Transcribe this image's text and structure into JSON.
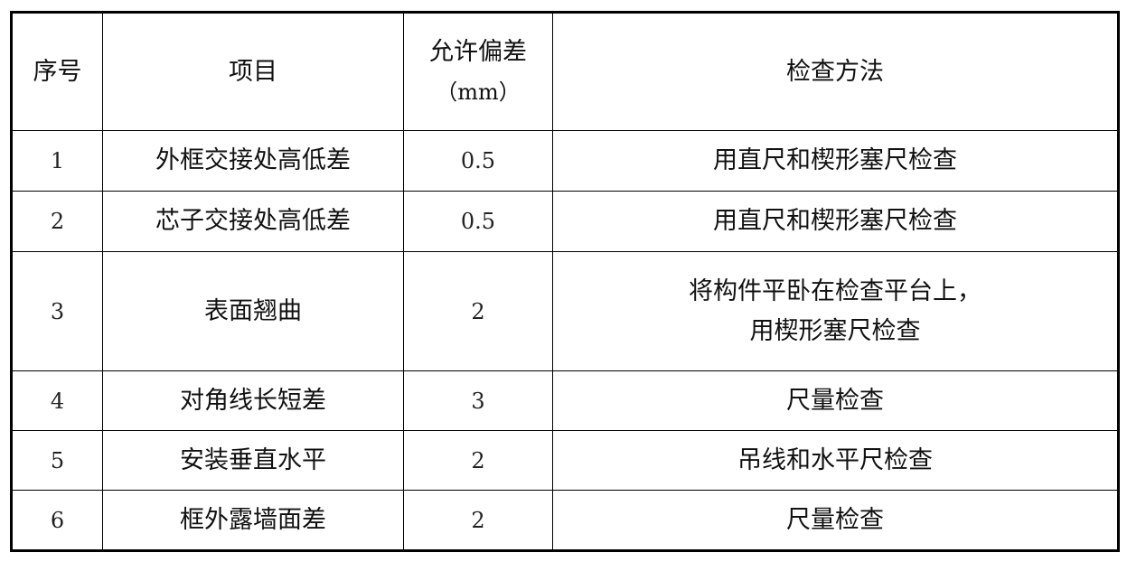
{
  "table": {
    "headers": [
      "序号",
      "项目",
      "允许偏差",
      "（mm）",
      "检查方法"
    ],
    "rows": [
      {
        "no": "1",
        "item": "外框交接处高低差",
        "tolerance": "0.5",
        "method": [
          "用直尺和楔形塞尺检查"
        ]
      },
      {
        "no": "2",
        "item": "芯子交接处高低差",
        "tolerance": "0.5",
        "method": [
          "用直尺和楔形塞尺检查"
        ]
      },
      {
        "no": "3",
        "item": "表面翘曲",
        "tolerance": "2",
        "method": [
          "将构件平卧在检查平台上，",
          "用楔形塞尺检查"
        ]
      },
      {
        "no": "4",
        "item": "对角线长短差",
        "tolerance": "3",
        "method": [
          "尺量检查"
        ]
      },
      {
        "no": "5",
        "item": "安装垂直水平",
        "tolerance": "2",
        "method": [
          "吊线和水平尺检查"
        ]
      },
      {
        "no": "6",
        "item": "框外露墙面差",
        "tolerance": "2",
        "method": [
          "尺量检查"
        ]
      }
    ]
  }
}
